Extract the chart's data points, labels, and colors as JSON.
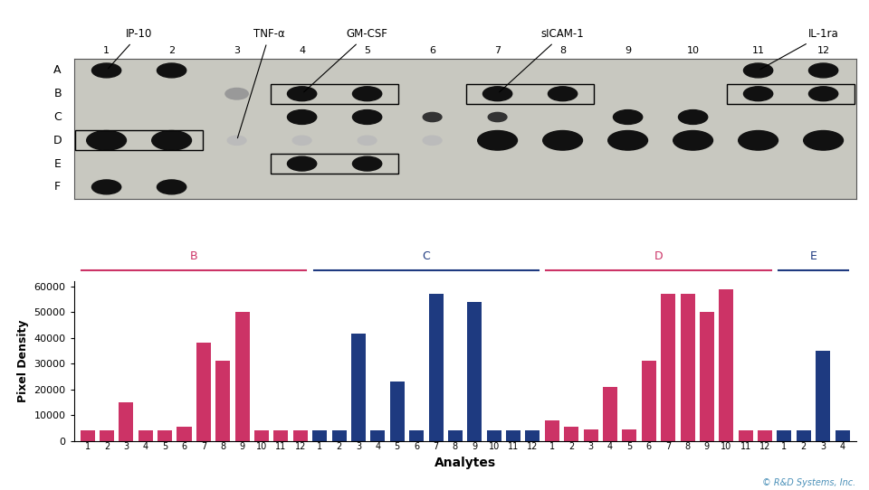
{
  "bar_values": [
    4000,
    4000,
    15000,
    4000,
    4000,
    5500,
    38000,
    31000,
    50000,
    4000,
    4000,
    4000,
    4000,
    4000,
    41500,
    4000,
    23000,
    4000,
    57000,
    4000,
    54000,
    4000,
    4000,
    4000,
    8000,
    5500,
    4500,
    21000,
    4500,
    31000,
    57000,
    57000,
    50000,
    59000,
    4000,
    4000,
    4000,
    4000,
    35000,
    4000
  ],
  "bar_colors": [
    "#cc3366",
    "#cc3366",
    "#cc3366",
    "#cc3366",
    "#cc3366",
    "#cc3366",
    "#cc3366",
    "#cc3366",
    "#cc3366",
    "#cc3366",
    "#cc3366",
    "#cc3366",
    "#1e3a80",
    "#1e3a80",
    "#1e3a80",
    "#1e3a80",
    "#1e3a80",
    "#1e3a80",
    "#1e3a80",
    "#1e3a80",
    "#1e3a80",
    "#1e3a80",
    "#1e3a80",
    "#1e3a80",
    "#cc3366",
    "#cc3366",
    "#cc3366",
    "#cc3366",
    "#cc3366",
    "#cc3366",
    "#cc3366",
    "#cc3366",
    "#cc3366",
    "#cc3366",
    "#cc3366",
    "#cc3366",
    "#1e3a80",
    "#1e3a80",
    "#1e3a80",
    "#1e3a80"
  ],
  "x_tick_labels": [
    "1",
    "2",
    "3",
    "4",
    "5",
    "6",
    "7",
    "8",
    "9",
    "10",
    "11",
    "12",
    "1",
    "2",
    "3",
    "4",
    "5",
    "6",
    "7",
    "8",
    "9",
    "10",
    "11",
    "12",
    "1",
    "2",
    "3",
    "4",
    "5",
    "6",
    "7",
    "8",
    "9",
    "10",
    "11",
    "12",
    "1",
    "2",
    "3",
    "4"
  ],
  "group_labels": [
    "B",
    "C",
    "D",
    "E"
  ],
  "group_starts": [
    0,
    12,
    24,
    36
  ],
  "group_ends": [
    11,
    23,
    35,
    39
  ],
  "group_colors": [
    "#cc3366",
    "#1e3a80",
    "#cc3366",
    "#1e3a80"
  ],
  "ylabel": "Pixel Density",
  "xlabel": "Analytes",
  "ylim": [
    0,
    62000
  ],
  "yticks": [
    0,
    10000,
    20000,
    30000,
    40000,
    50000,
    60000
  ],
  "ytick_labels": [
    "0",
    "10000",
    "20000",
    "30000",
    "40000",
    "50000",
    "60000"
  ],
  "bg_color": "#ffffff",
  "plot_bg_color": "#ffffff",
  "col_numbers": [
    "1",
    "2",
    "3",
    "4",
    "5",
    "6",
    "7",
    "8",
    "9",
    "10",
    "11",
    "12"
  ],
  "row_labels": [
    "A",
    "B",
    "C",
    "D",
    "E",
    "F"
  ],
  "array_bg_color": "#c8c8c0",
  "dot_color": "#111111",
  "dot_faint_color": "#888888",
  "dot_very_faint_color": "#bbbbbb",
  "credit_text": "© R&D Systems, Inc.",
  "credit_color": "#4a90b8",
  "annot_labels": [
    "IP-10",
    "TNF-α",
    "GM-CSF",
    "sICAM-1",
    "IL-1ra"
  ],
  "annot_col_idx": [
    0,
    2,
    3,
    6,
    10
  ],
  "annot_row_idx": [
    0,
    3,
    1,
    1,
    0
  ]
}
